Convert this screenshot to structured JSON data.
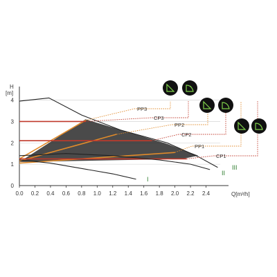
{
  "chart_data": {
    "type": "line",
    "title": "",
    "xlabel": "Q[m³/h]",
    "ylabel": "H [m]",
    "xlim": [
      0,
      2.6
    ],
    "ylim": [
      0,
      4.6
    ],
    "x_ticks": [
      "0.0",
      "0.2",
      "0.4",
      "0.6",
      "0.8",
      "1.0",
      "1.2",
      "1.4",
      "1.6",
      "1.8",
      "2.0",
      "2.2",
      "2.4"
    ],
    "y_ticks": [
      "0",
      "1",
      "2",
      "3",
      "4"
    ],
    "grid": "horizontal",
    "speed_curves": [
      {
        "label": "I",
        "points": [
          [
            0,
            1.2
          ],
          [
            0.4,
            1.05
          ],
          [
            0.8,
            0.8
          ],
          [
            1.2,
            0.55
          ],
          [
            1.5,
            0.3
          ]
        ]
      },
      {
        "label": "II",
        "points": [
          [
            0,
            1.4
          ],
          [
            0.6,
            1.5
          ],
          [
            1.2,
            1.4
          ],
          [
            1.8,
            1.2
          ],
          [
            2.2,
            1.0
          ],
          [
            2.45,
            0.75
          ]
        ]
      },
      {
        "label": "III",
        "points": [
          [
            0,
            3.95
          ],
          [
            0.38,
            4.1
          ],
          [
            0.8,
            3.3
          ],
          [
            1.3,
            2.6
          ],
          [
            1.9,
            2.0
          ],
          [
            2.3,
            1.35
          ],
          [
            2.55,
            0.85
          ]
        ]
      }
    ],
    "control_lines": [
      {
        "name": "PP3",
        "from": [
          0,
          1.25
        ],
        "to": [
          0.85,
          3.05
        ],
        "color": "#e08a2a"
      },
      {
        "name": "CP3",
        "from": [
          0,
          3.0
        ],
        "to": [
          0.85,
          3.0
        ],
        "color": "#c0392b"
      },
      {
        "name": "PP2",
        "from": [
          0,
          1.15
        ],
        "to": [
          1.25,
          2.4
        ],
        "color": "#e08a2a"
      },
      {
        "name": "CP2",
        "from": [
          0,
          2.1
        ],
        "to": [
          1.7,
          2.1
        ],
        "color": "#c0392b"
      },
      {
        "name": "PP1",
        "from": [
          0,
          1.05
        ],
        "to": [
          2.0,
          1.55
        ],
        "color": "#e08a2a"
      },
      {
        "name": "CP1",
        "from": [
          0,
          1.25
        ],
        "to": [
          2.15,
          1.25
        ],
        "color": "#c0392b"
      }
    ],
    "shaded_region": [
      [
        0,
        1.1
      ],
      [
        0.85,
        3.1
      ],
      [
        1.4,
        2.5
      ],
      [
        1.9,
        1.95
      ],
      [
        2.3,
        1.4
      ],
      [
        2.1,
        1.25
      ],
      [
        0,
        1.1
      ]
    ]
  },
  "callouts": [
    "PP3",
    "CP3",
    "PP2",
    "CP2",
    "PP1",
    "CP1"
  ],
  "speed_labels": [
    "I",
    "II",
    "III"
  ],
  "mode_icons": [
    "proportional-pressure-icon",
    "constant-pressure-icon",
    "proportional-pressure-icon",
    "constant-pressure-icon",
    "proportional-pressure-icon",
    "constant-pressure-icon"
  ],
  "colors": {
    "proportional": "#e08a2a",
    "constant": "#c0392b",
    "curve": "#222222",
    "speed_label": "#2f7d2f",
    "icon_bg": "#111111",
    "icon_fg": "#7fd14a"
  }
}
